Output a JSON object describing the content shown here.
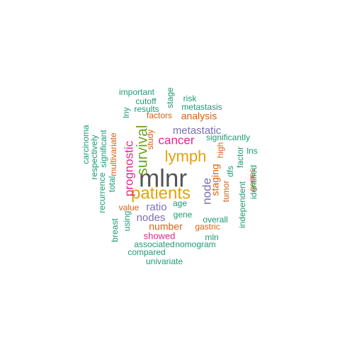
{
  "colors": {
    "dark_gray": "#555555",
    "gold": "#e6a10a",
    "green": "#6ea41c",
    "magenta": "#e0288a",
    "purple": "#7b6fb5",
    "orange": "#d96013",
    "teal": "#1d9a77"
  },
  "words": [
    {
      "text": "mlnr",
      "color": "dark_gray",
      "weight": 1.0
    },
    {
      "text": "patients",
      "color": "gold",
      "weight": 0.72
    },
    {
      "text": "lymph",
      "color": "gold",
      "weight": 0.62
    },
    {
      "text": "survival",
      "color": "green",
      "weight": 0.6
    },
    {
      "text": "prognostic",
      "color": "magenta",
      "weight": 0.55
    },
    {
      "text": "cancer",
      "color": "magenta",
      "weight": 0.5
    },
    {
      "text": "node",
      "color": "purple",
      "weight": 0.5
    },
    {
      "text": "metastatic",
      "color": "purple",
      "weight": 0.42
    },
    {
      "text": "ratio",
      "color": "purple",
      "weight": 0.42
    },
    {
      "text": "nodes",
      "color": "purple",
      "weight": 0.42
    },
    {
      "text": "analysis",
      "color": "orange",
      "weight": 0.36
    },
    {
      "text": "staging",
      "color": "orange",
      "weight": 0.36
    },
    {
      "text": "number",
      "color": "orange",
      "weight": 0.36
    },
    {
      "text": "showed",
      "color": "magenta",
      "weight": 0.34
    },
    {
      "text": "factors",
      "color": "orange",
      "weight": 0.32
    },
    {
      "text": "tumor",
      "color": "orange",
      "weight": 0.32
    },
    {
      "text": "study",
      "color": "orange",
      "weight": 0.3
    },
    {
      "text": "high",
      "color": "orange",
      "weight": 0.3
    },
    {
      "text": "value",
      "color": "orange",
      "weight": 0.3
    },
    {
      "text": "gastric",
      "color": "orange",
      "weight": 0.3
    },
    {
      "text": "genes",
      "color": "orange",
      "weight": 0.28
    },
    {
      "text": "multivariate",
      "color": "orange",
      "weight": 0.28
    },
    {
      "text": "significantly",
      "color": "teal",
      "weight": 0.28
    },
    {
      "text": "dfs",
      "color": "teal",
      "weight": 0.28
    },
    {
      "text": "factor",
      "color": "teal",
      "weight": 0.28
    },
    {
      "text": "age",
      "color": "teal",
      "weight": 0.28
    },
    {
      "text": "gene",
      "color": "teal",
      "weight": 0.28
    },
    {
      "text": "overall",
      "color": "teal",
      "weight": 0.28
    },
    {
      "text": "results",
      "color": "teal",
      "weight": 0.28
    },
    {
      "text": "important",
      "color": "teal",
      "weight": 0.28
    },
    {
      "text": "cutoff",
      "color": "teal",
      "weight": 0.28
    },
    {
      "text": "risk",
      "color": "teal",
      "weight": 0.28
    },
    {
      "text": "metastasis",
      "color": "teal",
      "weight": 0.28
    },
    {
      "text": "stage",
      "color": "teal",
      "weight": 0.28
    },
    {
      "text": "lny",
      "color": "teal",
      "weight": 0.28
    },
    {
      "text": "lns",
      "color": "teal",
      "weight": 0.28
    },
    {
      "text": "independent",
      "color": "teal",
      "weight": 0.28
    },
    {
      "text": "identified",
      "color": "teal",
      "weight": 0.28
    },
    {
      "text": "carcinoma",
      "color": "teal",
      "weight": 0.28
    },
    {
      "text": "respectively",
      "color": "teal",
      "weight": 0.28
    },
    {
      "text": "recurrence",
      "color": "teal",
      "weight": 0.28
    },
    {
      "text": "significant",
      "color": "teal",
      "weight": 0.28
    },
    {
      "text": "total",
      "color": "teal",
      "weight": 0.28
    },
    {
      "text": "breast",
      "color": "teal",
      "weight": 0.28
    },
    {
      "text": "using",
      "color": "teal",
      "weight": 0.28
    },
    {
      "text": "associated",
      "color": "teal",
      "weight": 0.28
    },
    {
      "text": "compared",
      "color": "teal",
      "weight": 0.28
    },
    {
      "text": "nomogram",
      "color": "teal",
      "weight": 0.28
    },
    {
      "text": "mln",
      "color": "teal",
      "weight": 0.28
    },
    {
      "text": "univariate",
      "color": "teal",
      "weight": 0.28
    }
  ]
}
